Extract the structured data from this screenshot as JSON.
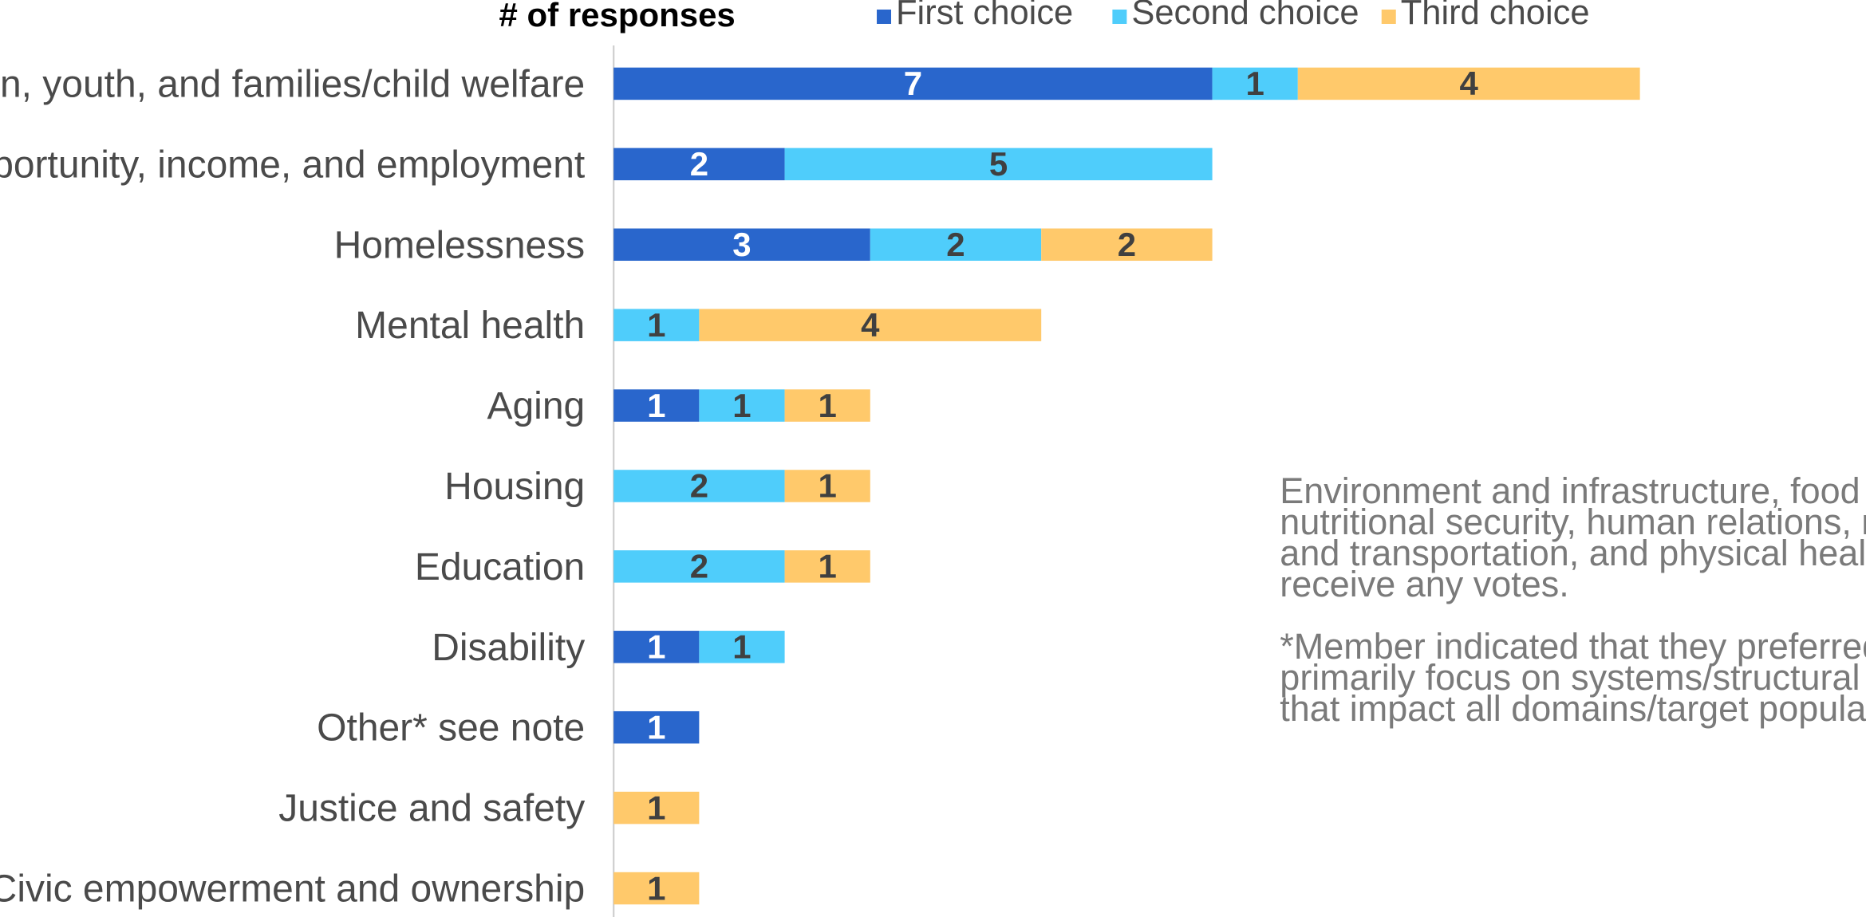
{
  "chart_data": {
    "type": "bar",
    "orientation": "horizontal",
    "stacked": true,
    "xlabel": "# of responses",
    "legend_position": "top",
    "grid": false,
    "categories": [
      "Children, youth, and families/child welfare",
      "Economic opportunity, income, and employment",
      "Homelessness",
      "Mental health",
      "Aging",
      "Housing",
      "Education",
      "Disability",
      "Other* see note",
      "Justice and safety",
      "Civic empowerment and ownership"
    ],
    "series": [
      {
        "name": "First choice",
        "color": "#2966CC",
        "label_color": "#ffffff",
        "values": [
          7,
          2,
          3,
          0,
          1,
          0,
          0,
          1,
          1,
          0,
          0
        ]
      },
      {
        "name": "Second choice",
        "color": "#4FCDFB",
        "label_color": "#404040",
        "values": [
          1,
          5,
          2,
          1,
          1,
          2,
          2,
          1,
          0,
          0,
          0
        ]
      },
      {
        "name": "Third choice",
        "color": "#FFC96B",
        "label_color": "#404040",
        "values": [
          4,
          0,
          2,
          4,
          1,
          1,
          1,
          0,
          0,
          1,
          1
        ]
      }
    ],
    "xlim": [
      0,
      12
    ]
  },
  "notes": [
    [
      "Environment and infrastructure, food and",
      "nutritional security, human relations, mobility",
      "and transportation, and physical health did not",
      "receive any votes."
    ],
    [
      "*Member indicated that they preferred to",
      "primarily focus on systems/structural barriers",
      "that impact all domains/target populations"
    ]
  ],
  "colors": {
    "axis_line": "#d0d0d0",
    "category_text": "#4a4a4a",
    "note_text": "#7a7a7a"
  }
}
